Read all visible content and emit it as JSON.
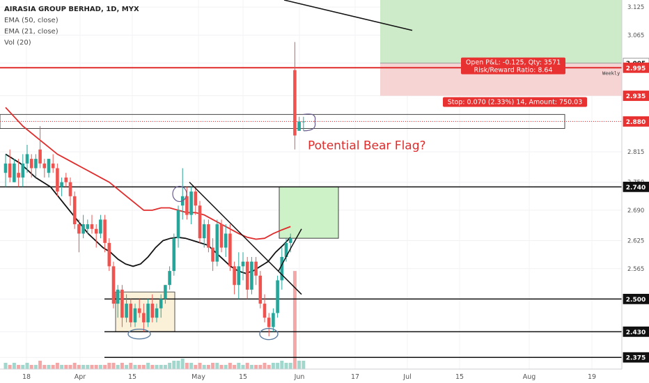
{
  "header": {
    "symbol": "AIRASIA GROUP BERHAD, 1D, MYX",
    "indicators": [
      "EMA (50, close)",
      "EMA (21, close)",
      "Vol (20)"
    ]
  },
  "chart_data": {
    "type": "candlestick",
    "y_axis": {
      "min": 2.35,
      "max": 3.14,
      "ticks": [
        2.375,
        2.43,
        2.5,
        2.565,
        2.625,
        2.69,
        2.75,
        2.815,
        2.88,
        2.935,
        3.005,
        3.065,
        3.125
      ],
      "highlighted_labels": [
        {
          "value": 3.005,
          "label": "3.005",
          "style": "white"
        },
        {
          "value": 2.995,
          "label": "2.995",
          "style": "red"
        },
        {
          "value": 2.935,
          "label": "2.935",
          "style": "red"
        },
        {
          "value": 2.88,
          "label": "2.880",
          "style": "red"
        },
        {
          "value": 2.74,
          "label": "2.740",
          "style": "black"
        },
        {
          "value": 2.5,
          "label": "2.500",
          "style": "black"
        },
        {
          "value": 2.43,
          "label": "2.430",
          "style": "black"
        },
        {
          "value": 2.375,
          "label": "2.375",
          "style": "black"
        }
      ]
    },
    "x_axis": {
      "labels": [
        "18",
        "Apr",
        "15",
        "May",
        "15",
        "Jun",
        "17",
        "Jul",
        "15",
        "Aug",
        "19"
      ]
    },
    "candles": [
      {
        "o": 2.77,
        "h": 2.81,
        "l": 2.74,
        "c": 2.79
      },
      {
        "o": 2.79,
        "h": 2.82,
        "l": 2.75,
        "c": 2.76
      },
      {
        "o": 2.75,
        "h": 2.8,
        "l": 2.75,
        "c": 2.79
      },
      {
        "o": 2.77,
        "h": 2.8,
        "l": 2.74,
        "c": 2.76
      },
      {
        "o": 2.76,
        "h": 2.81,
        "l": 2.74,
        "c": 2.79
      },
      {
        "o": 2.79,
        "h": 2.83,
        "l": 2.77,
        "c": 2.81
      },
      {
        "o": 2.8,
        "h": 2.81,
        "l": 2.76,
        "c": 2.78
      },
      {
        "o": 2.78,
        "h": 2.81,
        "l": 2.76,
        "c": 2.8
      },
      {
        "o": 2.82,
        "h": 2.87,
        "l": 2.78,
        "c": 2.79
      },
      {
        "o": 2.79,
        "h": 2.8,
        "l": 2.76,
        "c": 2.78
      },
      {
        "o": 2.77,
        "h": 2.8,
        "l": 2.76,
        "c": 2.8
      },
      {
        "o": 2.79,
        "h": 2.81,
        "l": 2.77,
        "c": 2.78
      },
      {
        "o": 2.78,
        "h": 2.79,
        "l": 2.72,
        "c": 2.73
      },
      {
        "o": 2.74,
        "h": 2.76,
        "l": 2.72,
        "c": 2.75
      },
      {
        "o": 2.76,
        "h": 2.77,
        "l": 2.74,
        "c": 2.75
      },
      {
        "o": 2.75,
        "h": 2.76,
        "l": 2.7,
        "c": 2.72
      },
      {
        "o": 2.72,
        "h": 2.73,
        "l": 2.65,
        "c": 2.66
      },
      {
        "o": 2.66,
        "h": 2.67,
        "l": 2.6,
        "c": 2.64
      },
      {
        "o": 2.64,
        "h": 2.68,
        "l": 2.63,
        "c": 2.66
      },
      {
        "o": 2.65,
        "h": 2.67,
        "l": 2.64,
        "c": 2.66
      },
      {
        "o": 2.66,
        "h": 2.68,
        "l": 2.64,
        "c": 2.65
      },
      {
        "o": 2.65,
        "h": 2.66,
        "l": 2.61,
        "c": 2.64
      },
      {
        "o": 2.64,
        "h": 2.68,
        "l": 2.63,
        "c": 2.67
      },
      {
        "o": 2.67,
        "h": 2.68,
        "l": 2.6,
        "c": 2.62
      },
      {
        "o": 2.62,
        "h": 2.63,
        "l": 2.56,
        "c": 2.57
      },
      {
        "o": 2.57,
        "h": 2.58,
        "l": 2.48,
        "c": 2.49
      },
      {
        "o": 2.49,
        "h": 2.53,
        "l": 2.46,
        "c": 2.52
      },
      {
        "o": 2.52,
        "h": 2.53,
        "l": 2.44,
        "c": 2.46
      },
      {
        "o": 2.46,
        "h": 2.51,
        "l": 2.45,
        "c": 2.49
      },
      {
        "o": 2.49,
        "h": 2.5,
        "l": 2.44,
        "c": 2.45
      },
      {
        "o": 2.45,
        "h": 2.49,
        "l": 2.44,
        "c": 2.48
      },
      {
        "o": 2.48,
        "h": 2.5,
        "l": 2.46,
        "c": 2.47
      },
      {
        "o": 2.47,
        "h": 2.49,
        "l": 2.43,
        "c": 2.45
      },
      {
        "o": 2.45,
        "h": 2.5,
        "l": 2.44,
        "c": 2.49
      },
      {
        "o": 2.49,
        "h": 2.51,
        "l": 2.45,
        "c": 2.46
      },
      {
        "o": 2.46,
        "h": 2.49,
        "l": 2.45,
        "c": 2.48
      },
      {
        "o": 2.48,
        "h": 2.51,
        "l": 2.46,
        "c": 2.5
      },
      {
        "o": 2.5,
        "h": 2.53,
        "l": 2.49,
        "c": 2.53
      },
      {
        "o": 2.53,
        "h": 2.57,
        "l": 2.52,
        "c": 2.56
      },
      {
        "o": 2.56,
        "h": 2.64,
        "l": 2.55,
        "c": 2.63
      },
      {
        "o": 2.63,
        "h": 2.7,
        "l": 2.61,
        "c": 2.69
      },
      {
        "o": 2.7,
        "h": 2.78,
        "l": 2.67,
        "c": 2.72
      },
      {
        "o": 2.72,
        "h": 2.74,
        "l": 2.67,
        "c": 2.68
      },
      {
        "o": 2.68,
        "h": 2.74,
        "l": 2.66,
        "c": 2.73
      },
      {
        "o": 2.73,
        "h": 2.74,
        "l": 2.68,
        "c": 2.7
      },
      {
        "o": 2.7,
        "h": 2.71,
        "l": 2.62,
        "c": 2.63
      },
      {
        "o": 2.63,
        "h": 2.67,
        "l": 2.61,
        "c": 2.66
      },
      {
        "o": 2.66,
        "h": 2.67,
        "l": 2.6,
        "c": 2.61
      },
      {
        "o": 2.61,
        "h": 2.63,
        "l": 2.56,
        "c": 2.58
      },
      {
        "o": 2.58,
        "h": 2.67,
        "l": 2.57,
        "c": 2.66
      },
      {
        "o": 2.66,
        "h": 2.67,
        "l": 2.6,
        "c": 2.61
      },
      {
        "o": 2.61,
        "h": 2.66,
        "l": 2.59,
        "c": 2.64
      },
      {
        "o": 2.64,
        "h": 2.66,
        "l": 2.56,
        "c": 2.57
      },
      {
        "o": 2.57,
        "h": 2.58,
        "l": 2.51,
        "c": 2.53
      },
      {
        "o": 2.53,
        "h": 2.6,
        "l": 2.5,
        "c": 2.57
      },
      {
        "o": 2.57,
        "h": 2.6,
        "l": 2.54,
        "c": 2.58
      },
      {
        "o": 2.58,
        "h": 2.59,
        "l": 2.5,
        "c": 2.52
      },
      {
        "o": 2.52,
        "h": 2.59,
        "l": 2.51,
        "c": 2.58
      },
      {
        "o": 2.58,
        "h": 2.59,
        "l": 2.53,
        "c": 2.55
      },
      {
        "o": 2.55,
        "h": 2.56,
        "l": 2.48,
        "c": 2.49
      },
      {
        "o": 2.49,
        "h": 2.51,
        "l": 2.45,
        "c": 2.46
      },
      {
        "o": 2.46,
        "h": 2.47,
        "l": 2.42,
        "c": 2.44
      },
      {
        "o": 2.44,
        "h": 2.48,
        "l": 2.43,
        "c": 2.47
      },
      {
        "o": 2.47,
        "h": 2.55,
        "l": 2.46,
        "c": 2.54
      },
      {
        "o": 2.54,
        "h": 2.61,
        "l": 2.52,
        "c": 2.59
      },
      {
        "o": 2.59,
        "h": 2.63,
        "l": 2.58,
        "c": 2.62
      },
      {
        "o": 2.62,
        "h": 2.64,
        "l": 2.6,
        "c": 2.63
      },
      {
        "o": 2.99,
        "h": 3.05,
        "l": 2.82,
        "c": 2.85
      },
      {
        "o": 2.86,
        "h": 2.89,
        "l": 2.86,
        "c": 2.88
      },
      {
        "o": 2.88,
        "h": 2.89,
        "l": 2.86,
        "c": 2.88
      }
    ],
    "volume": [
      3,
      2,
      3,
      2,
      2,
      3,
      2,
      2,
      4,
      2,
      2,
      2,
      3,
      2,
      2,
      2,
      3,
      2,
      2,
      2,
      2,
      2,
      2,
      2,
      3,
      3,
      2,
      3,
      2,
      3,
      2,
      2,
      2,
      3,
      2,
      2,
      2,
      2,
      3,
      4,
      4,
      5,
      3,
      3,
      2,
      3,
      2,
      2,
      3,
      3,
      2,
      2,
      3,
      2,
      3,
      2,
      3,
      2,
      2,
      2,
      3,
      2,
      3,
      3,
      4,
      3,
      3,
      55,
      4,
      4
    ],
    "ema21": [
      2.81,
      2.8,
      2.79,
      2.775,
      2.76,
      2.75,
      2.74,
      2.72,
      2.7,
      2.68,
      2.66,
      2.64,
      2.625,
      2.61,
      2.6,
      2.585,
      2.575,
      2.57,
      2.575,
      2.59,
      2.61,
      2.625,
      2.63,
      2.632,
      2.63,
      2.625,
      2.62,
      2.615,
      2.6,
      2.585,
      2.57,
      2.56,
      2.555,
      2.56,
      2.57,
      2.58,
      2.6,
      2.615,
      2.632
    ],
    "ema50": [
      2.91,
      2.89,
      2.87,
      2.855,
      2.84,
      2.825,
      2.81,
      2.8,
      2.79,
      2.78,
      2.77,
      2.76,
      2.75,
      2.735,
      2.72,
      2.705,
      2.69,
      2.69,
      2.695,
      2.695,
      2.69,
      2.685,
      2.685,
      2.68,
      2.67,
      2.66,
      2.65,
      2.64,
      2.632,
      2.628,
      2.63,
      2.64,
      2.648,
      2.655
    ],
    "annotations": {
      "resistance_line": 2.995,
      "weekly_label": "Weekly",
      "levels": [
        2.74,
        2.5,
        2.43,
        2.375
      ],
      "position_box": {
        "entry": 3.005,
        "target": 3.14,
        "stop": 2.935
      },
      "pnl_label": "Open P&L: -0.125, Qty: 3571",
      "rr_label": "Risk/Reward Ratio: 8.64",
      "stop_label": "Stop: 0.070 (2.33%) 14, Amount: 750.03",
      "flag_zone": {
        "top": 2.895,
        "bottom": 2.865
      },
      "note": "Potential Bear Flag?"
    }
  }
}
